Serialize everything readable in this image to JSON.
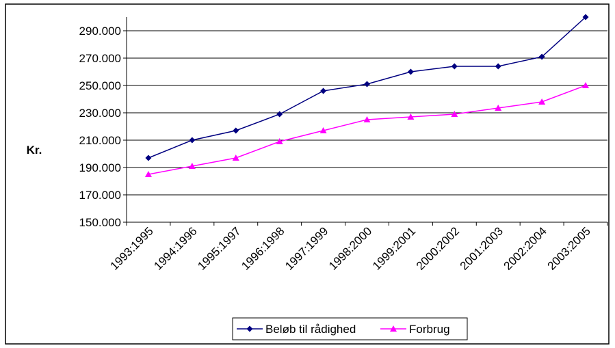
{
  "chart_data": {
    "type": "line",
    "title": "",
    "xlabel": "",
    "ylabel": "Kr.",
    "categories": [
      "1993:1995",
      "1994:1996",
      "1995:1997",
      "1996:1998",
      "1997:1999",
      "1998:2000",
      "1999:2001",
      "2000:2002",
      "2001:2003",
      "2002:2004",
      "2003:2005"
    ],
    "series": [
      {
        "name": "Beløb til rådighed",
        "color": "#000080",
        "marker": "diamond",
        "values": [
          197000,
          210000,
          217000,
          229000,
          246000,
          251000,
          260000,
          264000,
          264000,
          271000,
          300000
        ]
      },
      {
        "name": "Forbrug",
        "color": "#ff00ff",
        "marker": "triangle",
        "values": [
          185000,
          191000,
          197000,
          209000,
          217000,
          225000,
          227000,
          229000,
          233500,
          238000,
          250000
        ]
      }
    ],
    "ylim": [
      150000,
      300000
    ],
    "yticks": [
      150000,
      170000,
      190000,
      210000,
      230000,
      250000,
      270000,
      290000
    ],
    "ytick_labels": [
      "150.000",
      "170.000",
      "190.000",
      "210.000",
      "230.000",
      "250.000",
      "270.000",
      "290.000"
    ],
    "grid": "horizontal",
    "legend_position": "bottom"
  }
}
